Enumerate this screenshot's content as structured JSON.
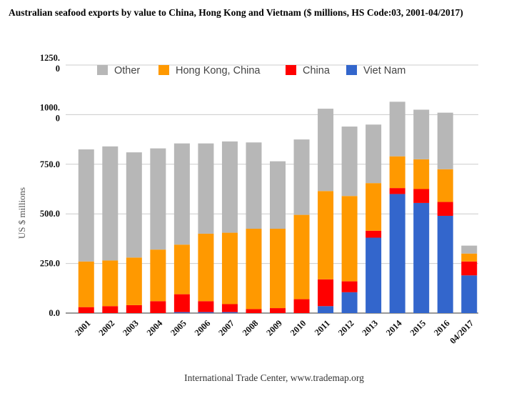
{
  "chart_data": {
    "type": "bar",
    "stacked": true,
    "title": "Australian seafood exports by value to China, Hong Kong and Vietnam ($ millions, HS Code:03, 2001-04/2017)",
    "ylabel": "US $ millions",
    "source": "International Trade Center, www.trademap.org",
    "ylim": [
      0,
      1250
    ],
    "yticks": [
      0,
      250,
      500,
      750,
      1000,
      1250
    ],
    "ytick_labels": [
      "0.0",
      "250.0",
      "500.0",
      "750.0",
      "1000.\n0",
      "1250.\n0"
    ],
    "grid": true,
    "legend_position": "top",
    "categories": [
      "2001",
      "2002",
      "2003",
      "2004",
      "2005",
      "2006",
      "2007",
      "2008",
      "2009",
      "2010",
      "2011",
      "2012",
      "2013",
      "2014",
      "2015",
      "2016",
      "04/2017"
    ],
    "series": [
      {
        "name": "Viet Nam",
        "color": "#3366cc",
        "values": [
          0,
          0,
          0,
          0,
          5,
          5,
          5,
          0,
          0,
          0,
          35,
          105,
          380,
          600,
          555,
          490,
          190
        ]
      },
      {
        "name": "China",
        "color": "#ff0000",
        "values": [
          30,
          35,
          40,
          60,
          90,
          55,
          40,
          20,
          25,
          70,
          135,
          55,
          35,
          30,
          70,
          70,
          70
        ]
      },
      {
        "name": "Hong Kong, China",
        "color": "#ff9900",
        "values": [
          230,
          230,
          240,
          260,
          250,
          340,
          360,
          405,
          400,
          425,
          445,
          430,
          240,
          160,
          150,
          165,
          40
        ]
      },
      {
        "name": "Other",
        "color": "#b7b7b7",
        "values": [
          565,
          575,
          530,
          510,
          510,
          455,
          460,
          435,
          340,
          380,
          415,
          350,
          295,
          275,
          250,
          285,
          40
        ]
      }
    ]
  }
}
